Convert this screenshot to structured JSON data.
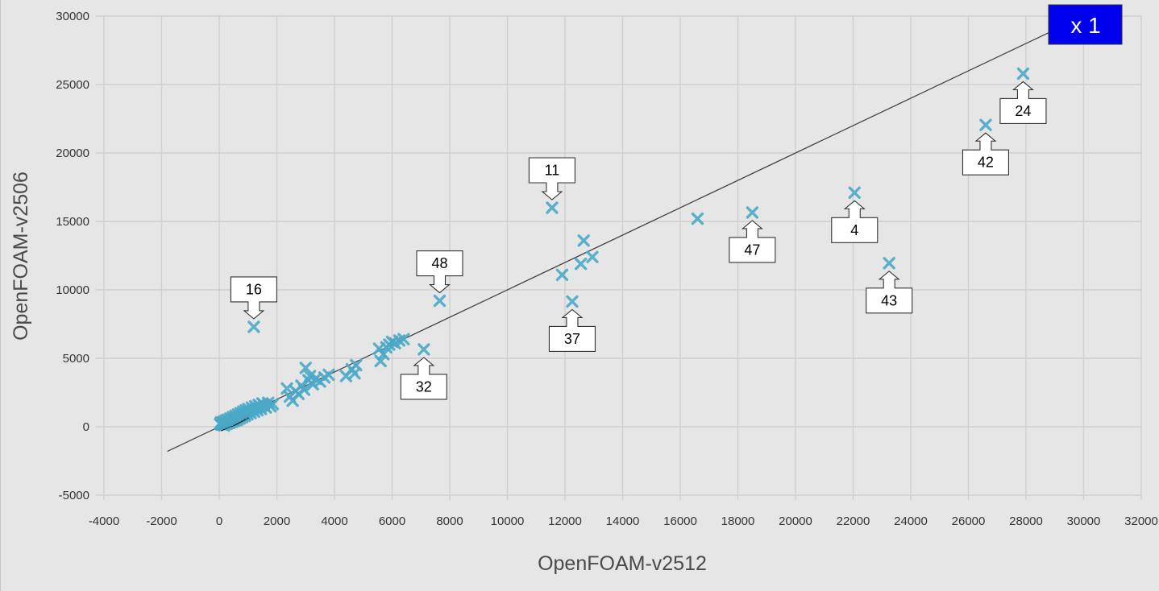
{
  "chart_data": {
    "type": "scatter",
    "xlabel": "OpenFOAM-v2512",
    "ylabel": "OpenFOAM-v2506",
    "xlim": [
      -4000,
      32000
    ],
    "ylim": [
      -5000,
      30000
    ],
    "xticks": [
      -4000,
      -2000,
      0,
      2000,
      4000,
      6000,
      8000,
      10000,
      12000,
      14000,
      16000,
      18000,
      20000,
      22000,
      24000,
      26000,
      28000,
      30000,
      32000
    ],
    "yticks": [
      -5000,
      0,
      5000,
      10000,
      15000,
      20000,
      25000,
      30000
    ],
    "grid": true,
    "reference_line": {
      "slope": 1,
      "from": -1800,
      "to": 28900
    },
    "badge": {
      "text": "x 1",
      "color": "#0000ee"
    },
    "marker_color": "#4aa8c6",
    "series": [
      {
        "points": [
          [
            30,
            200
          ],
          [
            60,
            320
          ],
          [
            90,
            150
          ],
          [
            120,
            260
          ],
          [
            150,
            380
          ],
          [
            170,
            90
          ],
          [
            200,
            300
          ],
          [
            230,
            450
          ],
          [
            260,
            200
          ],
          [
            290,
            520
          ],
          [
            320,
            370
          ],
          [
            350,
            280
          ],
          [
            380,
            600
          ],
          [
            410,
            450
          ],
          [
            440,
            350
          ],
          [
            470,
            700
          ],
          [
            500,
            550
          ],
          [
            530,
            420
          ],
          [
            560,
            800
          ],
          [
            590,
            650
          ],
          [
            620,
            500
          ],
          [
            650,
            900
          ],
          [
            680,
            750
          ],
          [
            710,
            600
          ],
          [
            740,
            1000
          ],
          [
            770,
            850
          ],
          [
            800,
            700
          ],
          [
            830,
            1100
          ],
          [
            860,
            950
          ],
          [
            890,
            800
          ],
          [
            920,
            1200
          ],
          [
            950,
            1050
          ],
          [
            980,
            900
          ],
          [
            1010,
            1300
          ],
          [
            1050,
            1150
          ],
          [
            1090,
            1000
          ],
          [
            1130,
            1400
          ],
          [
            1170,
            1250
          ],
          [
            1210,
            1100
          ],
          [
            1250,
            1500
          ],
          [
            1290,
            1350
          ],
          [
            1330,
            1200
          ],
          [
            1370,
            1600
          ],
          [
            1410,
            1450
          ],
          [
            1450,
            1300
          ],
          [
            1500,
            1700
          ],
          [
            1560,
            1550
          ],
          [
            1620,
            1400
          ],
          [
            1700,
            1750
          ],
          [
            1780,
            1500
          ],
          [
            1860,
            1650
          ],
          [
            2350,
            2800
          ],
          [
            2450,
            2200
          ],
          [
            2550,
            1900
          ],
          [
            2650,
            2600
          ],
          [
            2750,
            2400
          ],
          [
            2850,
            3000
          ],
          [
            2950,
            2700
          ],
          [
            3000,
            4300
          ],
          [
            3100,
            3400
          ],
          [
            3150,
            3700
          ],
          [
            3250,
            3100
          ],
          [
            3350,
            3500
          ],
          [
            3500,
            3300
          ],
          [
            3650,
            3600
          ],
          [
            3800,
            3800
          ],
          [
            4400,
            3700
          ],
          [
            4600,
            4200
          ],
          [
            4700,
            3900
          ],
          [
            4750,
            4500
          ],
          [
            5550,
            5700
          ],
          [
            5600,
            4800
          ],
          [
            5700,
            5300
          ],
          [
            5800,
            5800
          ],
          [
            5900,
            6000
          ],
          [
            6000,
            6200
          ],
          [
            6100,
            6100
          ],
          [
            6250,
            6300
          ],
          [
            6400,
            6400
          ],
          [
            12550,
            11900
          ],
          [
            12950,
            12400
          ]
        ]
      }
    ],
    "labeled_points": [
      {
        "label": "16",
        "x": 1200,
        "y": 7300,
        "callout": "above"
      },
      {
        "label": "48",
        "x": 7650,
        "y": 9200,
        "callout": "above"
      },
      {
        "label": "11",
        "x": 11550,
        "y": 16000,
        "callout": "above"
      },
      {
        "label": "32",
        "x": 7100,
        "y": 5650,
        "callout": "below"
      },
      {
        "label": "37",
        "x": 12250,
        "y": 9150,
        "callout": "below"
      },
      {
        "label": "47",
        "x": 18500,
        "y": 15650,
        "callout": "below"
      },
      {
        "label": "4",
        "x": 22050,
        "y": 17100,
        "callout": "below"
      },
      {
        "label": "43",
        "x": 23250,
        "y": 11950,
        "callout": "below"
      },
      {
        "label": "42",
        "x": 26600,
        "y": 22050,
        "callout": "below"
      },
      {
        "label": "24",
        "x": 27900,
        "y": 25800,
        "callout": "below"
      }
    ],
    "other_points": [
      {
        "x": 11900,
        "y": 11100
      },
      {
        "x": 12650,
        "y": 13600
      },
      {
        "x": 16600,
        "y": 15200
      }
    ]
  }
}
